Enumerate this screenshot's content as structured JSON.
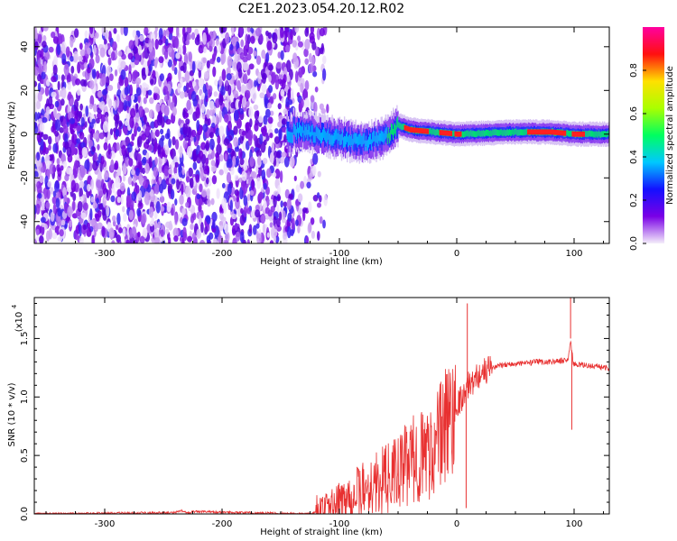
{
  "title": "C2E1.2023.054.20.12.R02",
  "chart_data": [
    {
      "type": "heatmap",
      "xlabel": "Height of straight line (km)",
      "ylabel": "Frequency (Hz)",
      "xlim": [
        -360,
        130
      ],
      "ylim": [
        -50,
        49
      ],
      "xticks": [
        -300,
        -200,
        -100,
        0,
        100
      ],
      "yticks": [
        -40,
        -20,
        0,
        20,
        40
      ],
      "colorbar": {
        "label": "Normalized spectral amplitude",
        "range": [
          0,
          1
        ],
        "ticks": [
          "0.0",
          "0.2",
          "0.4",
          "0.6",
          "0.8"
        ],
        "colormap": [
          "#f4eefa",
          "#7a00e6",
          "#1410ff",
          "#00c8ff",
          "#00ff60",
          "#aaff00",
          "#ffe000",
          "#ff1010",
          "#ff00a0"
        ]
      },
      "ridge": {
        "description_points": [
          [
            -140,
            2
          ],
          [
            -120,
            0
          ],
          [
            -100,
            -2
          ],
          [
            -80,
            -4
          ],
          [
            -60,
            -1
          ],
          [
            -50,
            4
          ],
          [
            -40,
            2
          ],
          [
            -20,
            1
          ],
          [
            0,
            0
          ],
          [
            50,
            1
          ],
          [
            80,
            1
          ],
          [
            100,
            0
          ],
          [
            130,
            0
          ]
        ],
        "noise_region_x": [
          -360,
          -125
        ]
      },
      "grid": false
    },
    {
      "type": "line",
      "xlabel": "Height of straight line (km)",
      "ylabel": "SNR (10 * v/v)",
      "yscale_label": "(x10",
      "yscale_exp": "4",
      "xlim": [
        -360,
        130
      ],
      "ylim": [
        0,
        1.85
      ],
      "xticks": [
        -300,
        -200,
        -100,
        0,
        100
      ],
      "yticks": [
        "0.0",
        "0.5",
        "1.0",
        "1.5"
      ],
      "color": "#e83030",
      "series": [
        {
          "x": [
            -360,
            -240,
            -235,
            -230,
            -225,
            -125,
            -110,
            -100,
            -90,
            -80,
            -70,
            -60,
            -50,
            -40,
            -30,
            -20,
            -15,
            -10,
            -5,
            0,
            5,
            10,
            15,
            20,
            30,
            40,
            50,
            60,
            70,
            80,
            90,
            95,
            97,
            99,
            100,
            110,
            120,
            130
          ],
          "y": [
            0.0,
            0.01,
            0.03,
            0.01,
            0.02,
            0.0,
            0.03,
            0.1,
            0.15,
            0.2,
            0.25,
            0.3,
            0.35,
            0.45,
            0.5,
            0.55,
            0.65,
            0.75,
            0.85,
            0.95,
            1.0,
            1.1,
            1.15,
            1.2,
            1.25,
            1.28,
            1.28,
            1.29,
            1.3,
            1.3,
            1.31,
            1.32,
            1.5,
            1.3,
            1.28,
            1.27,
            1.26,
            1.25
          ]
        }
      ],
      "spikes": [
        {
          "x": 9,
          "y": 1.8
        },
        {
          "x": 8,
          "y": 0.05
        },
        {
          "x": 97,
          "y": 1.85
        },
        {
          "x": 98,
          "y": 0.72
        }
      ],
      "grid": false
    }
  ]
}
